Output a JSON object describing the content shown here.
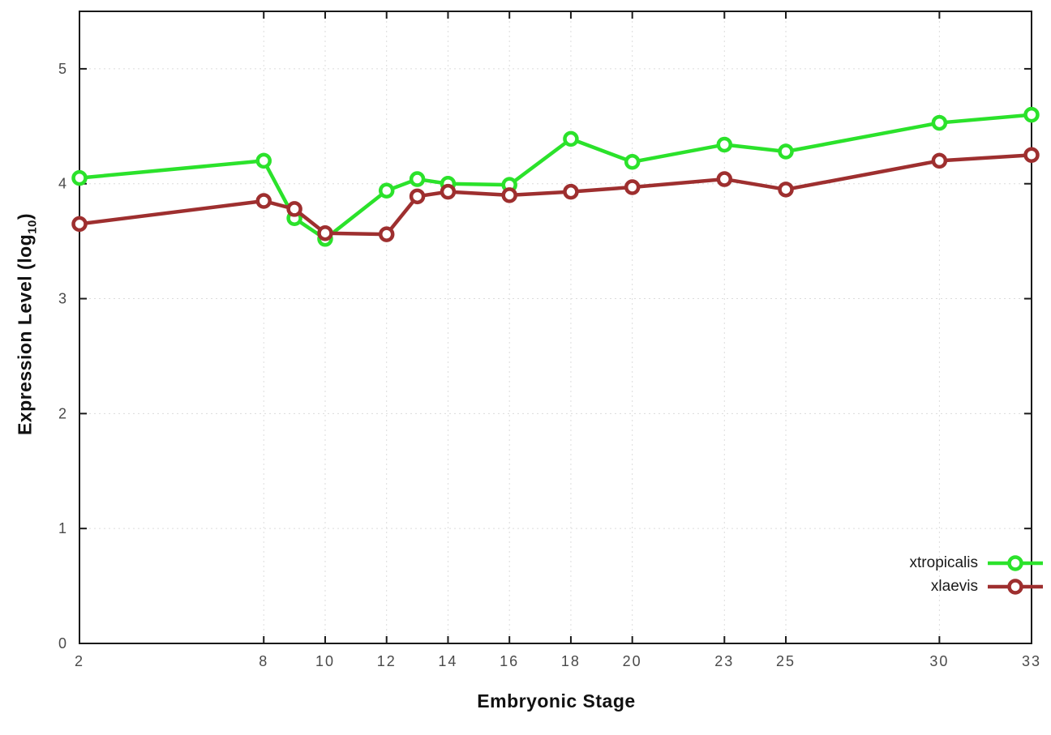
{
  "chart_data": {
    "type": "line",
    "title": "",
    "xlabel": "Embryonic Stage",
    "ylabel": {
      "prefix": "Expression Level (log",
      "sub": "10",
      "suffix": ")"
    },
    "xlim": [
      2,
      33
    ],
    "ylim": [
      0,
      5.5
    ],
    "x_ticks": [
      2,
      8,
      10,
      12,
      14,
      16,
      18,
      20,
      23,
      25,
      30,
      33
    ],
    "y_ticks": [
      0,
      1,
      2,
      3,
      4,
      5
    ],
    "grid": true,
    "axis_color": "#1a1a1a",
    "grid_color": "#dcdcdc",
    "tick_label_color": "#4a4a4a",
    "legend_position": "inside-bottom-right",
    "marker": "open-circle",
    "x": [
      2,
      8,
      9,
      10,
      12,
      13,
      14,
      16,
      18,
      20,
      23,
      25,
      30,
      33
    ],
    "series": [
      {
        "name": "xtropicalis",
        "color": "#2be22b",
        "values": [
          4.05,
          4.2,
          3.7,
          3.52,
          3.94,
          4.04,
          4.0,
          3.99,
          4.39,
          4.19,
          4.34,
          4.28,
          4.53,
          4.6
        ]
      },
      {
        "name": "xlaevis",
        "color": "#9e2f2f",
        "values": [
          3.65,
          3.85,
          3.78,
          3.57,
          3.56,
          3.89,
          3.93,
          3.9,
          3.93,
          3.97,
          4.04,
          3.95,
          4.2,
          4.25
        ]
      }
    ]
  }
}
